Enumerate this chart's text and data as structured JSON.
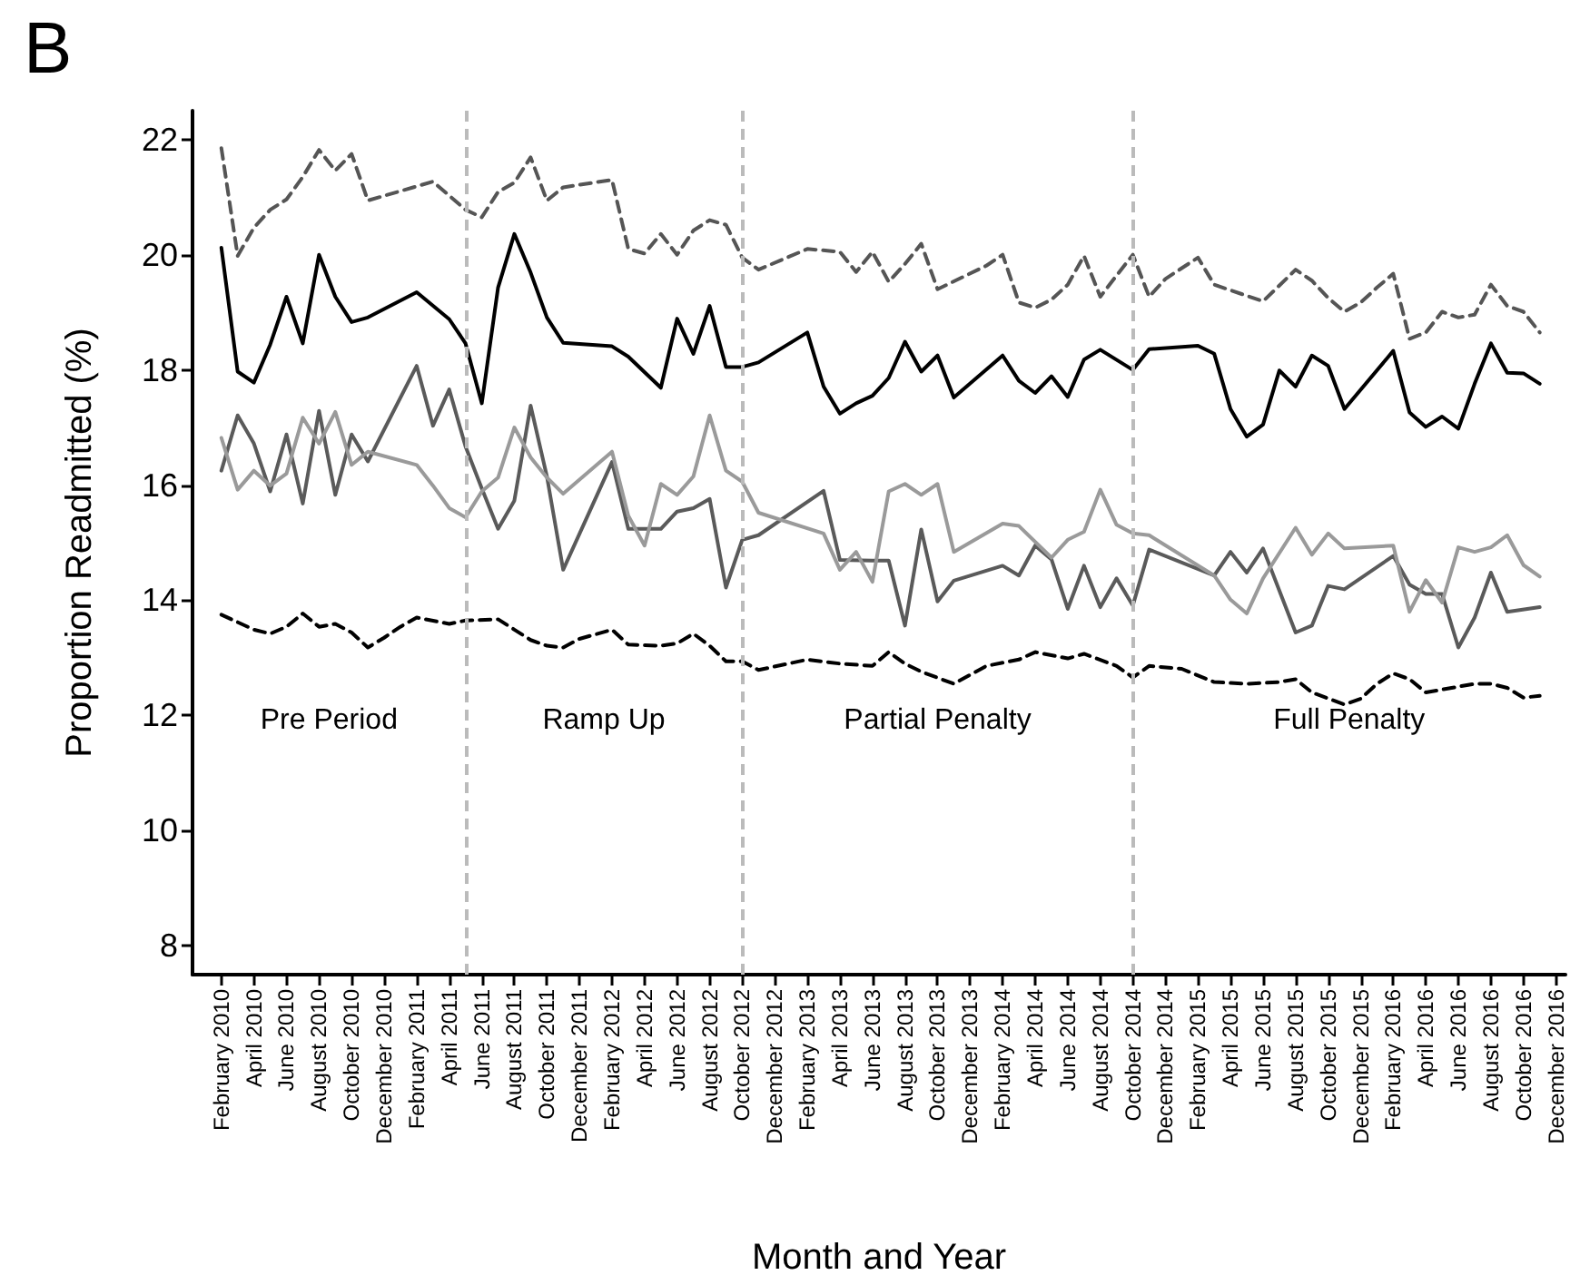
{
  "chart_data": {
    "type": "line",
    "title": "B",
    "xlabel": "Month and Year",
    "ylabel": "Proportion Readmitted (%)",
    "xlim": [
      "2009-12-08",
      "2016-12-19"
    ],
    "ylim": [
      7.5,
      22.5
    ],
    "yticks": [
      8,
      10,
      12,
      14,
      16,
      18,
      20,
      22
    ],
    "xticks": [
      {
        "value": "2010-02",
        "label": "February 2010"
      },
      {
        "value": "2010-04",
        "label": "April 2010"
      },
      {
        "value": "2010-06",
        "label": "June 2010"
      },
      {
        "value": "2010-08",
        "label": "August 2010"
      },
      {
        "value": "2010-10",
        "label": "October 2010"
      },
      {
        "value": "2010-12",
        "label": "December 2010"
      },
      {
        "value": "2011-02",
        "label": "February 2011"
      },
      {
        "value": "2011-04",
        "label": "April 2011"
      },
      {
        "value": "2011-06",
        "label": "June 2011"
      },
      {
        "value": "2011-08",
        "label": "August 2011"
      },
      {
        "value": "2011-10",
        "label": "October 2011"
      },
      {
        "value": "2011-12",
        "label": "December 2011"
      },
      {
        "value": "2012-02",
        "label": "February 2012"
      },
      {
        "value": "2012-04",
        "label": "April 2012"
      },
      {
        "value": "2012-06",
        "label": "June 2012"
      },
      {
        "value": "2012-08",
        "label": "August 2012"
      },
      {
        "value": "2012-10",
        "label": "October 2012"
      },
      {
        "value": "2012-12",
        "label": "December 2012"
      },
      {
        "value": "2013-02",
        "label": "February 2013"
      },
      {
        "value": "2013-04",
        "label": "April 2013"
      },
      {
        "value": "2013-06",
        "label": "June 2013"
      },
      {
        "value": "2013-08",
        "label": "August 2013"
      },
      {
        "value": "2013-10",
        "label": "October 2013"
      },
      {
        "value": "2013-12",
        "label": "December 2013"
      },
      {
        "value": "2014-02",
        "label": "February 2014"
      },
      {
        "value": "2014-04",
        "label": "April 2014"
      },
      {
        "value": "2014-06",
        "label": "June 2014"
      },
      {
        "value": "2014-08",
        "label": "August 2014"
      },
      {
        "value": "2014-10",
        "label": "October 2014"
      },
      {
        "value": "2014-12",
        "label": "December 2014"
      },
      {
        "value": "2015-02",
        "label": "February 2015"
      },
      {
        "value": "2015-04",
        "label": "April 2015"
      },
      {
        "value": "2015-06",
        "label": "June 2015"
      },
      {
        "value": "2015-08",
        "label": "August 2015"
      },
      {
        "value": "2015-10",
        "label": "October 2015"
      },
      {
        "value": "2015-12",
        "label": "December 2015"
      },
      {
        "value": "2016-02",
        "label": "February 2016"
      },
      {
        "value": "2016-04",
        "label": "April 2016"
      },
      {
        "value": "2016-06",
        "label": "June 2016"
      },
      {
        "value": "2016-08",
        "label": "August 2016"
      },
      {
        "value": "2016-10",
        "label": "October 2016"
      },
      {
        "value": "2016-12",
        "label": "December 2016"
      }
    ],
    "marker": "none",
    "grid": false,
    "ref_lines": [
      {
        "axis": "x",
        "value": "2011-05",
        "color": "#bbbbbb",
        "line_style": "dashed"
      },
      {
        "axis": "x",
        "value": "2012-10",
        "color": "#bbbbbb",
        "line_style": "dashed"
      },
      {
        "axis": "x",
        "value": "2014-10",
        "color": "#bbbbbb",
        "line_style": "dashed"
      }
    ],
    "annotations": [
      "Pre Period",
      "Ramp Up",
      "Partial Penalty",
      "Full Penalty"
    ],
    "series": [
      {
        "color": "#555555",
        "line_style": "dashed",
        "x": [
          "2010-02",
          "2010-03",
          "2010-04",
          "2010-05",
          "2010-06",
          "2010-07",
          "2010-08",
          "2010-09",
          "2010-10",
          "2010-11",
          "2011-03",
          "2011-05",
          "2011-06",
          "2011-07",
          "2011-08",
          "2011-09",
          "2011-10",
          "2011-11",
          "2012-02",
          "2012-03",
          "2012-04",
          "2012-05",
          "2012-06",
          "2012-07",
          "2012-08",
          "2012-09",
          "2012-10",
          "2012-11",
          "2013-02",
          "2013-04",
          "2013-05",
          "2013-06",
          "2013-07",
          "2013-08",
          "2013-09",
          "2013-10",
          "2014-01",
          "2014-02",
          "2014-03",
          "2014-04",
          "2014-05",
          "2014-06",
          "2014-07",
          "2014-08",
          "2014-09",
          "2014-10",
          "2014-11",
          "2014-12",
          "2015-02",
          "2015-03",
          "2015-06",
          "2015-08",
          "2015-09",
          "2015-10",
          "2015-11",
          "2015-12",
          "2016-01",
          "2016-02",
          "2016-03",
          "2016-04",
          "2016-05",
          "2016-06",
          "2016-07",
          "2016-08",
          "2016-09",
          "2016-10",
          "2016-11"
        ],
        "values": [
          21.85,
          19.98,
          20.47,
          20.78,
          20.96,
          21.35,
          21.82,
          21.46,
          21.75,
          20.94,
          21.27,
          20.78,
          20.65,
          21.09,
          21.25,
          21.69,
          20.94,
          21.17,
          21.3,
          20.1,
          20.02,
          20.36,
          20.0,
          20.42,
          20.6,
          20.52,
          19.95,
          19.74,
          20.1,
          20.05,
          19.7,
          20.05,
          19.53,
          19.84,
          20.19,
          19.4,
          19.81,
          20.0,
          19.17,
          19.08,
          19.22,
          19.48,
          19.98,
          19.27,
          19.64,
          20.0,
          19.27,
          19.58,
          19.95,
          19.48,
          19.19,
          19.74,
          19.55,
          19.25,
          19.01,
          19.17,
          19.43,
          19.67,
          18.54,
          18.65,
          19.01,
          18.91,
          18.96,
          19.48,
          19.11,
          19.01,
          18.65
        ]
      },
      {
        "color": "#000000",
        "line_style": "solid",
        "x": [
          "2010-02",
          "2010-03",
          "2010-04",
          "2010-05",
          "2010-06",
          "2010-07",
          "2010-08",
          "2010-09",
          "2010-10",
          "2010-11",
          "2011-02",
          "2011-04",
          "2011-05",
          "2011-06",
          "2011-07",
          "2011-08",
          "2011-09",
          "2011-10",
          "2011-11",
          "2012-02",
          "2012-03",
          "2012-05",
          "2012-06",
          "2012-07",
          "2012-08",
          "2012-09",
          "2012-10",
          "2012-11",
          "2013-02",
          "2013-03",
          "2013-04",
          "2013-05",
          "2013-06",
          "2013-07",
          "2013-08",
          "2013-09",
          "2013-10",
          "2013-11",
          "2014-02",
          "2014-03",
          "2014-04",
          "2014-05",
          "2014-06",
          "2014-07",
          "2014-08",
          "2014-10",
          "2014-11",
          "2015-02",
          "2015-03",
          "2015-04",
          "2015-05",
          "2015-06",
          "2015-07",
          "2015-08",
          "2015-09",
          "2015-10",
          "2015-11",
          "2016-02",
          "2016-03",
          "2016-04",
          "2016-05",
          "2016-06",
          "2016-07",
          "2016-08",
          "2016-09",
          "2016-10",
          "2016-11"
        ],
        "values": [
          20.12,
          17.97,
          17.78,
          18.44,
          19.27,
          18.46,
          20.0,
          19.27,
          18.83,
          18.91,
          19.35,
          18.88,
          18.46,
          17.42,
          19.43,
          20.36,
          19.69,
          18.91,
          18.47,
          18.41,
          18.23,
          17.69,
          18.89,
          18.28,
          19.11,
          18.05,
          18.05,
          18.13,
          18.65,
          17.71,
          17.24,
          17.42,
          17.55,
          17.86,
          18.49,
          17.97,
          18.25,
          17.52,
          18.25,
          17.81,
          17.6,
          17.89,
          17.53,
          18.18,
          18.35,
          18.0,
          18.36,
          18.42,
          18.28,
          17.32,
          16.84,
          17.05,
          17.99,
          17.71,
          18.25,
          18.07,
          17.32,
          18.33,
          17.26,
          17.01,
          17.19,
          16.98,
          17.76,
          18.46,
          17.95,
          17.94,
          17.76
        ]
      },
      {
        "color": "#5a5a5a",
        "line_style": "solid",
        "x": [
          "2010-02",
          "2010-03",
          "2010-04",
          "2010-05",
          "2010-06",
          "2010-07",
          "2010-08",
          "2010-09",
          "2010-10",
          "2010-11",
          "2011-02",
          "2011-03",
          "2011-04",
          "2011-05",
          "2011-06",
          "2011-07",
          "2011-08",
          "2011-09",
          "2011-10",
          "2011-11",
          "2012-02",
          "2012-03",
          "2012-05",
          "2012-06",
          "2012-07",
          "2012-08",
          "2012-09",
          "2012-10",
          "2012-11",
          "2013-03",
          "2013-04",
          "2013-06",
          "2013-07",
          "2013-08",
          "2013-09",
          "2013-10",
          "2013-11",
          "2014-02",
          "2014-03",
          "2014-04",
          "2014-05",
          "2014-06",
          "2014-07",
          "2014-08",
          "2014-09",
          "2014-10",
          "2014-11",
          "2015-03",
          "2015-04",
          "2015-05",
          "2015-06",
          "2015-07",
          "2015-08",
          "2015-09",
          "2015-10",
          "2015-11",
          "2016-02",
          "2016-03",
          "2016-04",
          "2016-05",
          "2016-06",
          "2016-07",
          "2016-08",
          "2016-09",
          "2016-11"
        ],
        "values": [
          16.25,
          17.21,
          16.72,
          15.89,
          16.88,
          15.68,
          17.29,
          15.83,
          16.88,
          16.41,
          18.07,
          17.03,
          17.66,
          16.67,
          15.94,
          15.24,
          15.73,
          17.38,
          16.15,
          14.53,
          16.4,
          15.24,
          15.24,
          15.54,
          15.6,
          15.76,
          14.22,
          15.05,
          15.13,
          15.9,
          14.7,
          14.69,
          14.69,
          13.56,
          15.23,
          13.98,
          14.34,
          14.6,
          14.43,
          14.95,
          14.71,
          13.85,
          14.6,
          13.88,
          14.38,
          13.91,
          14.88,
          14.43,
          14.84,
          14.48,
          14.9,
          14.17,
          13.44,
          13.56,
          14.25,
          14.19,
          14.77,
          14.27,
          14.11,
          14.11,
          13.18,
          13.7,
          14.48,
          13.8,
          13.88
        ]
      },
      {
        "color": "#9a9a9a",
        "line_style": "solid",
        "x": [
          "2010-02",
          "2010-03",
          "2010-04",
          "2010-05",
          "2010-06",
          "2010-07",
          "2010-08",
          "2010-09",
          "2010-10",
          "2010-11",
          "2011-02",
          "2011-03",
          "2011-04",
          "2011-05",
          "2011-06",
          "2011-07",
          "2011-08",
          "2011-09",
          "2011-10",
          "2011-11",
          "2012-02",
          "2012-03",
          "2012-04",
          "2012-05",
          "2012-06",
          "2012-07",
          "2012-08",
          "2012-09",
          "2012-10",
          "2012-11",
          "2013-03",
          "2013-04",
          "2013-05",
          "2013-06",
          "2013-07",
          "2013-08",
          "2013-09",
          "2013-10",
          "2013-11",
          "2014-02",
          "2014-03",
          "2014-05",
          "2014-06",
          "2014-07",
          "2014-08",
          "2014-09",
          "2014-10",
          "2014-11",
          "2015-03",
          "2015-04",
          "2015-05",
          "2015-06",
          "2015-08",
          "2015-09",
          "2015-10",
          "2015-11",
          "2016-02",
          "2016-03",
          "2016-04",
          "2016-05",
          "2016-06",
          "2016-07",
          "2016-08",
          "2016-09",
          "2016-10",
          "2016-11"
        ],
        "values": [
          16.82,
          15.92,
          16.25,
          15.99,
          16.2,
          17.17,
          16.72,
          17.27,
          16.35,
          16.58,
          16.35,
          15.99,
          15.6,
          15.44,
          15.89,
          16.13,
          17.0,
          16.48,
          16.13,
          15.85,
          16.58,
          15.47,
          14.95,
          16.02,
          15.83,
          16.15,
          17.21,
          16.25,
          16.06,
          15.52,
          15.16,
          14.53,
          14.84,
          14.32,
          15.89,
          16.02,
          15.83,
          16.02,
          14.84,
          15.33,
          15.29,
          14.74,
          15.05,
          15.19,
          15.92,
          15.31,
          15.16,
          15.13,
          14.43,
          14.01,
          13.77,
          14.38,
          15.26,
          14.79,
          15.16,
          14.9,
          14.95,
          13.8,
          14.35,
          13.96,
          14.92,
          14.84,
          14.92,
          15.13,
          14.61,
          14.41
        ]
      },
      {
        "color": "#000000",
        "line_style": "dashed",
        "x": [
          "2010-02",
          "2010-04",
          "2010-05",
          "2010-06",
          "2010-07",
          "2010-08",
          "2010-09",
          "2010-10",
          "2010-11",
          "2010-12",
          "2011-01",
          "2011-02",
          "2011-04",
          "2011-05",
          "2011-07",
          "2011-08",
          "2011-09",
          "2011-10",
          "2011-11",
          "2011-12",
          "2012-02",
          "2012-03",
          "2012-05",
          "2012-06",
          "2012-07",
          "2012-08",
          "2012-09",
          "2012-10",
          "2012-11",
          "2013-02",
          "2013-04",
          "2013-06",
          "2013-07",
          "2013-08",
          "2013-09",
          "2013-11",
          "2014-01",
          "2014-03",
          "2014-04",
          "2014-06",
          "2014-07",
          "2014-09",
          "2014-10",
          "2014-11",
          "2015-01",
          "2015-03",
          "2015-05",
          "2015-07",
          "2015-08",
          "2015-09",
          "2015-11",
          "2015-12",
          "2016-01",
          "2016-02",
          "2016-03",
          "2016-04",
          "2016-05",
          "2016-07",
          "2016-08",
          "2016-09",
          "2016-10",
          "2016-11"
        ],
        "values": [
          13.75,
          13.49,
          13.42,
          13.54,
          13.77,
          13.54,
          13.59,
          13.44,
          13.18,
          13.35,
          13.54,
          13.7,
          13.59,
          13.65,
          13.67,
          13.49,
          13.31,
          13.21,
          13.18,
          13.33,
          13.49,
          13.23,
          13.21,
          13.25,
          13.42,
          13.21,
          12.94,
          12.94,
          12.79,
          12.97,
          12.9,
          12.86,
          13.1,
          12.9,
          12.76,
          12.55,
          12.86,
          12.97,
          13.1,
          12.99,
          13.07,
          12.86,
          12.66,
          12.86,
          12.81,
          12.58,
          12.55,
          12.58,
          12.63,
          12.4,
          12.19,
          12.29,
          12.55,
          12.73,
          12.63,
          12.4,
          12.45,
          12.55,
          12.55,
          12.48,
          12.31,
          12.34
        ]
      }
    ]
  }
}
